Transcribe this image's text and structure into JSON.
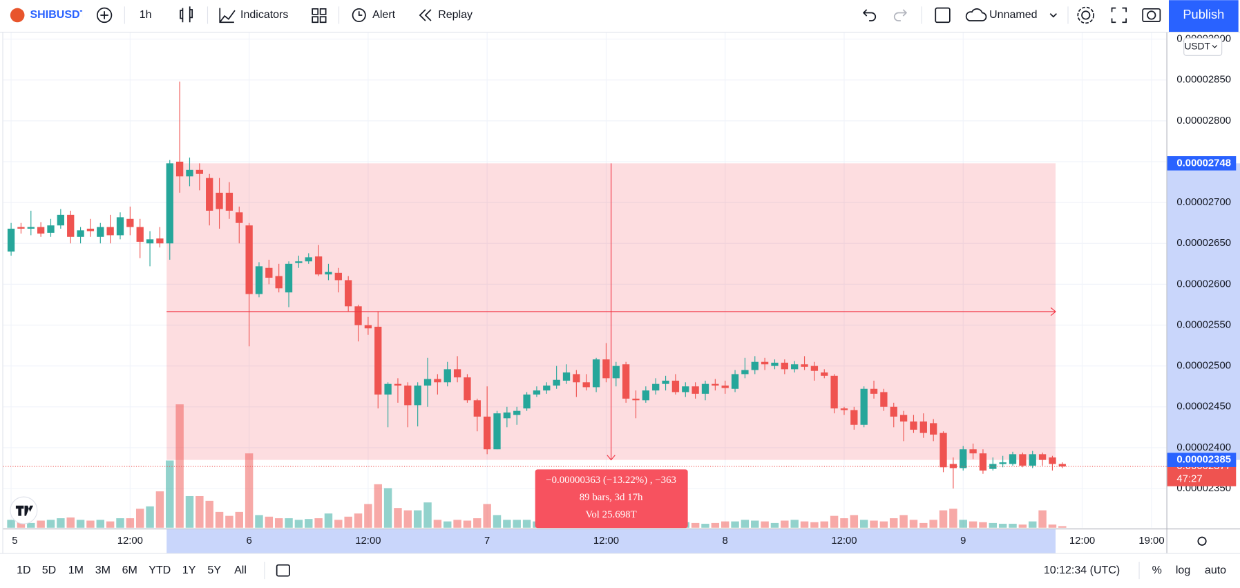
{
  "toolbar": {
    "symbol": "SHIBUSDT",
    "interval": "1h",
    "indicators": "Indicators",
    "alert": "Alert",
    "replay": "Replay",
    "layout": "Unnamed",
    "publish": "Publish"
  },
  "chart": {
    "type": "candlestick",
    "currency": "USDT",
    "grid": true,
    "up_color": "#26a69a",
    "down_color": "#ef5350",
    "xlim": [
      -1.12,
      116.5
    ],
    "ylim": [
      2.302e-05,
      2.908e-05
    ],
    "yticks": [
      {
        "value": 2.35e-05,
        "label": "0.00002350"
      },
      {
        "value": 2.4e-05,
        "label": "0.00002400"
      },
      {
        "value": 2.45e-05,
        "label": "0.00002450"
      },
      {
        "value": 2.5e-05,
        "label": "0.00002500"
      },
      {
        "value": 2.55e-05,
        "label": "0.00002550"
      },
      {
        "value": 2.6e-05,
        "label": "0.00002600"
      },
      {
        "value": 2.65e-05,
        "label": "0.00002650"
      },
      {
        "value": 2.7e-05,
        "label": "0.00002700"
      },
      {
        "value": 2.75e-05,
        "label": "0.00002750"
      },
      {
        "value": 2.8e-05,
        "label": "0.00002800"
      },
      {
        "value": 2.85e-05,
        "label": "0.00002850"
      },
      {
        "value": 2.9e-05,
        "label": "0.00002900"
      }
    ],
    "xticks": [
      {
        "value": 0,
        "label": "5"
      },
      {
        "value": 12,
        "label": "12:00"
      },
      {
        "value": 24,
        "label": "6"
      },
      {
        "value": 36,
        "label": "12:00"
      },
      {
        "value": 48,
        "label": "7"
      },
      {
        "value": 60,
        "label": "12:00"
      },
      {
        "value": 72,
        "label": "8"
      },
      {
        "value": 84,
        "label": "12:00"
      },
      {
        "value": 96,
        "label": "9"
      },
      {
        "value": 108,
        "label": "12:00"
      },
      {
        "value": 115,
        "label": "19:00"
      }
    ],
    "candles": [
      [
        2.64e-05,
        2.675e-05,
        2.635e-05,
        2.668e-05
      ],
      [
        2.67e-05,
        2.675e-05,
        2.662e-05,
        2.668e-05
      ],
      [
        2.668e-05,
        2.69e-05,
        2.66e-05,
        2.67e-05
      ],
      [
        2.67e-05,
        2.676e-05,
        2.658e-05,
        2.662e-05
      ],
      [
        2.663e-05,
        2.68e-05,
        2.658e-05,
        2.672e-05
      ],
      [
        2.672e-05,
        2.692e-05,
        2.668e-05,
        2.685e-05
      ],
      [
        2.685e-05,
        2.69e-05,
        2.65e-05,
        2.658e-05
      ],
      [
        2.658e-05,
        2.67e-05,
        2.65e-05,
        2.666e-05
      ],
      [
        2.668e-05,
        2.68e-05,
        2.658e-05,
        2.665e-05
      ],
      [
        2.658e-05,
        2.675e-05,
        2.65e-05,
        2.67e-05
      ],
      [
        2.67e-05,
        2.685e-05,
        2.65e-05,
        2.66e-05
      ],
      [
        2.66e-05,
        2.688e-05,
        2.655e-05,
        2.682e-05
      ],
      [
        2.68e-05,
        2.695e-05,
        2.66e-05,
        2.67e-05
      ],
      [
        2.67e-05,
        2.68e-05,
        2.632e-05,
        2.652e-05
      ],
      [
        2.65e-05,
        2.665e-05,
        2.622e-05,
        2.655e-05
      ],
      [
        2.656e-05,
        2.67e-05,
        2.645e-05,
        2.65e-05
      ],
      [
        2.65e-05,
        2.752e-05,
        2.63e-05,
        2.748e-05
      ],
      [
        2.75e-05,
        2.848e-05,
        2.712e-05,
        2.732e-05
      ],
      [
        2.732e-05,
        2.755e-05,
        2.72e-05,
        2.74e-05
      ],
      [
        2.74e-05,
        2.748e-05,
        2.715e-05,
        2.735e-05
      ],
      [
        2.73e-05,
        2.735e-05,
        2.672e-05,
        2.69e-05
      ],
      [
        2.712e-05,
        2.73e-05,
        2.668e-05,
        2.692e-05
      ],
      [
        2.712e-05,
        2.725e-05,
        2.68e-05,
        2.69e-05
      ],
      [
        2.688e-05,
        2.695e-05,
        2.65e-05,
        2.675e-05
      ],
      [
        2.672e-05,
        2.675e-05,
        2.524e-05,
        2.588e-05
      ],
      [
        2.588e-05,
        2.627e-05,
        2.584e-05,
        2.622e-05
      ],
      [
        2.62e-05,
        2.63e-05,
        2.6e-05,
        2.608e-05
      ],
      [
        2.61e-05,
        2.625e-05,
        2.59e-05,
        2.595e-05
      ],
      [
        2.59e-05,
        2.628e-05,
        2.572e-05,
        2.625e-05
      ],
      [
        2.626e-05,
        2.635e-05,
        2.62e-05,
        2.628e-05
      ],
      [
        2.628e-05,
        2.638e-05,
        2.625e-05,
        2.633e-05
      ],
      [
        2.634e-05,
        2.648e-05,
        2.61e-05,
        2.612e-05
      ],
      [
        2.612e-05,
        2.625e-05,
        2.605e-05,
        2.615e-05
      ],
      [
        2.614e-05,
        2.62e-05,
        2.59e-05,
        2.605e-05
      ],
      [
        2.605e-05,
        2.61e-05,
        2.567e-05,
        2.573e-05
      ],
      [
        2.573e-05,
        2.575e-05,
        2.53e-05,
        2.55e-05
      ],
      [
        2.55e-05,
        2.56e-05,
        2.538e-05,
        2.546e-05
      ],
      [
        2.548e-05,
        2.567e-05,
        2.448e-05,
        2.465e-05
      ],
      [
        2.465e-05,
        2.48e-05,
        2.425e-05,
        2.478e-05
      ],
      [
        2.478e-05,
        2.485e-05,
        2.455e-05,
        2.476e-05
      ],
      [
        2.476e-05,
        2.48e-05,
        2.425e-05,
        2.452e-05
      ],
      [
        2.452e-05,
        2.48e-05,
        2.426e-05,
        2.476e-05
      ],
      [
        2.476e-05,
        2.51e-05,
        2.45e-05,
        2.484e-05
      ],
      [
        2.484e-05,
        2.49e-05,
        2.465e-05,
        2.48e-05
      ],
      [
        2.48e-05,
        2.505e-05,
        2.475e-05,
        2.496e-05
      ],
      [
        2.496e-05,
        2.512e-05,
        2.48e-05,
        2.486e-05
      ],
      [
        2.486e-05,
        2.49e-05,
        2.455e-05,
        2.458e-05
      ],
      [
        2.458e-05,
        2.46e-05,
        2.42e-05,
        2.438e-05
      ],
      [
        2.438e-05,
        2.475e-05,
        2.392e-05,
        2.398e-05
      ],
      [
        2.398e-05,
        2.445e-05,
        2.398e-05,
        2.442e-05
      ],
      [
        2.436e-05,
        2.45e-05,
        2.425e-05,
        2.443e-05
      ],
      [
        2.44e-05,
        2.45e-05,
        2.428e-05,
        2.445e-05
      ],
      [
        2.448e-05,
        2.468e-05,
        2.445e-05,
        2.465e-05
      ],
      [
        2.465e-05,
        2.475e-05,
        2.462e-05,
        2.47e-05
      ],
      [
        2.47e-05,
        2.48e-05,
        2.466e-05,
        2.476e-05
      ],
      [
        2.476e-05,
        2.5e-05,
        2.472e-05,
        2.483e-05
      ],
      [
        2.482e-05,
        2.502e-05,
        2.478e-05,
        2.492e-05
      ],
      [
        2.49e-05,
        2.495e-05,
        2.462e-05,
        2.48e-05
      ],
      [
        2.48e-05,
        2.49e-05,
        2.47e-05,
        2.474e-05
      ],
      [
        2.474e-05,
        2.51e-05,
        2.468e-05,
        2.508e-05
      ],
      [
        2.508e-05,
        2.528e-05,
        2.48e-05,
        2.485e-05
      ],
      [
        2.485e-05,
        2.505e-05,
        2.475e-05,
        2.5e-05
      ],
      [
        2.502e-05,
        2.505e-05,
        2.455e-05,
        2.46e-05
      ],
      [
        2.46e-05,
        2.47e-05,
        2.436e-05,
        2.458e-05
      ],
      [
        2.458e-05,
        2.475e-05,
        2.455e-05,
        2.47e-05
      ],
      [
        2.47e-05,
        2.485e-05,
        2.465e-05,
        2.478e-05
      ],
      [
        2.478e-05,
        2.488e-05,
        2.47e-05,
        2.482e-05
      ],
      [
        2.482e-05,
        2.49e-05,
        2.465e-05,
        2.468e-05
      ],
      [
        2.468e-05,
        2.48e-05,
        2.462e-05,
        2.475e-05
      ],
      [
        2.475e-05,
        2.48e-05,
        2.46e-05,
        2.466e-05
      ],
      [
        2.466e-05,
        2.482e-05,
        2.458e-05,
        2.478e-05
      ],
      [
        2.478e-05,
        2.484e-05,
        2.47e-05,
        2.476e-05
      ],
      [
        2.476e-05,
        2.482e-05,
        2.466e-05,
        2.473e-05
      ],
      [
        2.472e-05,
        2.495e-05,
        2.468e-05,
        2.49e-05
      ],
      [
        2.49e-05,
        2.51e-05,
        2.485e-05,
        2.495e-05
      ],
      [
        2.495e-05,
        2.512e-05,
        2.49e-05,
        2.505e-05
      ],
      [
        2.505e-05,
        2.51e-05,
        2.495e-05,
        2.502e-05
      ],
      [
        2.5e-05,
        2.508e-05,
        2.496e-05,
        2.504e-05
      ],
      [
        2.504e-05,
        2.508e-05,
        2.49e-05,
        2.496e-05
      ],
      [
        2.496e-05,
        2.506e-05,
        2.492e-05,
        2.502e-05
      ],
      [
        2.502e-05,
        2.512e-05,
        2.495e-05,
        2.499e-05
      ],
      [
        2.5e-05,
        2.505e-05,
        2.482e-05,
        2.494e-05
      ],
      [
        2.492e-05,
        2.496e-05,
        2.485e-05,
        2.488e-05
      ],
      [
        2.488e-05,
        2.49e-05,
        2.442e-05,
        2.448e-05
      ],
      [
        2.448e-05,
        2.45e-05,
        2.44e-05,
        2.446e-05
      ],
      [
        2.446e-05,
        2.45e-05,
        2.422e-05,
        2.428e-05
      ],
      [
        2.428e-05,
        2.475e-05,
        2.425e-05,
        2.472e-05
      ],
      [
        2.472e-05,
        2.482e-05,
        2.46e-05,
        2.466e-05
      ],
      [
        2.468e-05,
        2.472e-05,
        2.445e-05,
        2.45e-05
      ],
      [
        2.45e-05,
        2.455e-05,
        2.425e-05,
        2.438e-05
      ],
      [
        2.44e-05,
        2.445e-05,
        2.408e-05,
        2.432e-05
      ],
      [
        2.432e-05,
        2.44e-05,
        2.418e-05,
        2.422e-05
      ],
      [
        2.432e-05,
        2.442e-05,
        2.412e-05,
        2.418e-05
      ],
      [
        2.43e-05,
        2.435e-05,
        2.408e-05,
        2.416e-05
      ],
      [
        2.418e-05,
        2.42e-05,
        2.37e-05,
        2.376e-05
      ],
      [
        2.38e-05,
        2.388e-05,
        2.35e-05,
        2.375e-05
      ],
      [
        2.375e-05,
        2.402e-05,
        2.372e-05,
        2.398e-05
      ],
      [
        2.398e-05,
        2.405e-05,
        2.386e-05,
        2.393e-05
      ],
      [
        2.393e-05,
        2.398e-05,
        2.368e-05,
        2.372e-05
      ],
      [
        2.374e-05,
        2.388e-05,
        2.372e-05,
        2.38e-05
      ],
      [
        2.38e-05,
        2.39e-05,
        2.376e-05,
        2.382e-05
      ],
      [
        2.38e-05,
        2.395e-05,
        2.378e-05,
        2.392e-05
      ],
      [
        2.392e-05,
        2.394e-05,
        2.376e-05,
        2.378e-05
      ],
      [
        2.378e-05,
        2.396e-05,
        2.375e-05,
        2.392e-05
      ],
      [
        2.392e-05,
        2.394e-05,
        2.378e-05,
        2.385e-05
      ],
      [
        2.388e-05,
        2.39e-05,
        2.372e-05,
        2.38e-05
      ],
      [
        2.38e-05,
        2.382e-05,
        2.375e-05,
        2.377e-05
      ]
    ],
    "volumes": [
      0.24,
      0.192,
      0.144,
      0.216,
      0.24,
      0.288,
      0.312,
      0.24,
      0.216,
      0.24,
      0.192,
      0.288,
      0.288,
      0.576,
      0.648,
      1.104,
      2.04,
      3.744,
      0.96,
      0.96,
      0.816,
      0.48,
      0.36,
      0.48,
      2.256,
      0.384,
      0.336,
      0.288,
      0.288,
      0.24,
      0.264,
      0.288,
      0.432,
      0.24,
      0.336,
      0.432,
      0.72,
      1.32,
      1.2,
      0.6,
      0.528,
      0.528,
      0.768,
      0.24,
      0.192,
      0.24,
      0.216,
      0.288,
      0.72,
      0.384,
      0.24,
      0.24,
      0.24,
      0.192,
      0.168,
      0.192,
      0.216,
      0.24,
      0.192,
      0.288,
      0.312,
      0.24,
      0.264,
      0.216,
      0.192,
      0.168,
      0.144,
      0.192,
      0.168,
      0.144,
      0.12,
      0.144,
      0.192,
      0.192,
      0.24,
      0.216,
      0.192,
      0.144,
      0.216,
      0.24,
      0.192,
      0.168,
      0.192,
      0.36,
      0.288,
      0.384,
      0.24,
      0.216,
      0.192,
      0.288,
      0.384,
      0.24,
      0.144,
      0.24,
      0.528,
      0.576,
      0.24,
      0.192,
      0.168,
      0.144,
      0.12,
      0.12,
      0.096,
      0.192,
      0.528,
      0.096,
      0.048
    ],
    "measure": {
      "x_range": [
        16,
        105
      ],
      "from": 2.748e-05,
      "to": 2.385e-05,
      "lines": [
        "−0.00000363 (−13.22%) , −363",
        "89 bars, 3d 17h",
        "Vol 25.698T"
      ]
    },
    "price_labels": [
      {
        "value": 2.748e-05,
        "label": "0.00002748"
      },
      {
        "value": 2.385e-05,
        "label": "0.00002385"
      }
    ],
    "last_price": {
      "value": 2.377e-05,
      "label": "0.00002377",
      "countdown": "47:27"
    }
  },
  "bottom_bar": {
    "ranges": [
      "1D",
      "5D",
      "1M",
      "3M",
      "6M",
      "YTD",
      "1Y",
      "5Y",
      "All"
    ],
    "clock": "10:12:34 (UTC)",
    "scale_options": [
      "%",
      "log",
      "auto"
    ]
  }
}
